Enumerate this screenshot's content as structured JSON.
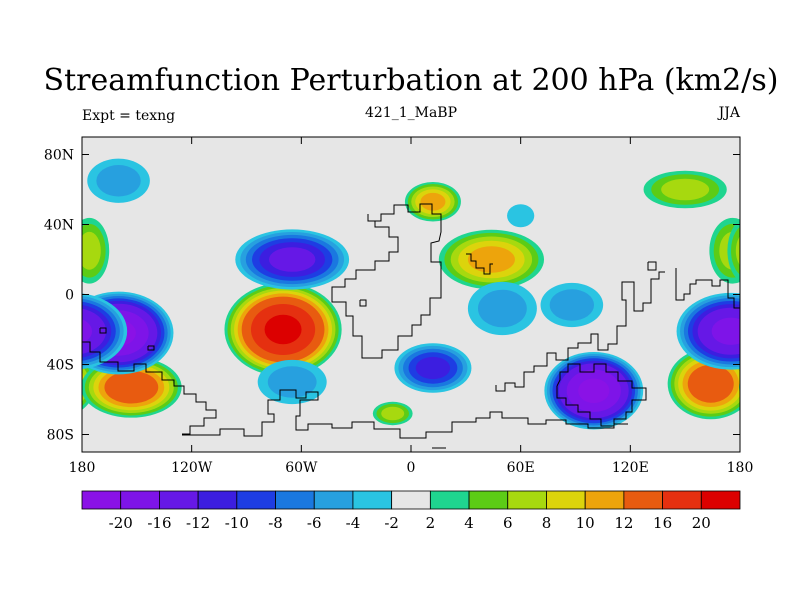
{
  "chart_data": {
    "type": "contour_map",
    "title": "Streamfunction Perturbation at 200 hPa (km2/s)",
    "left_label": "Expt = texng",
    "center_label": "421_1_MaBP",
    "right_label": "JJA",
    "xlim": [
      -180,
      180
    ],
    "ylim": [
      -90,
      90
    ],
    "x_ticks": [
      {
        "value": -180,
        "label": "180"
      },
      {
        "value": -120,
        "label": "120W"
      },
      {
        "value": -60,
        "label": "60W"
      },
      {
        "value": 0,
        "label": "0"
      },
      {
        "value": 60,
        "label": "60E"
      },
      {
        "value": 120,
        "label": "120E"
      },
      {
        "value": 180,
        "label": "180"
      }
    ],
    "y_ticks": [
      {
        "value": 80,
        "label": "80N"
      },
      {
        "value": 40,
        "label": "40N"
      },
      {
        "value": 0,
        "label": "0"
      },
      {
        "value": -40,
        "label": "40S"
      },
      {
        "value": -80,
        "label": "80S"
      }
    ],
    "colorbar": {
      "labels": [
        "-20",
        "-16",
        "-12",
        "-10",
        "-8",
        "-6",
        "-4",
        "-2",
        "2",
        "4",
        "6",
        "8",
        "10",
        "12",
        "16",
        "20"
      ],
      "colors": [
        "#8a12e6",
        "#7e14e8",
        "#6618e6",
        "#3c1ee0",
        "#1e3de3",
        "#1a78e0",
        "#27a0df",
        "#2ac4e2",
        "#e6e6e6",
        "#1fd58f",
        "#5ccc16",
        "#a7d90f",
        "#dcd40c",
        "#eda40c",
        "#e85b10",
        "#e53010",
        "#dc0000"
      ]
    },
    "features": [
      {
        "name": "positive-center",
        "lon": -70,
        "lat": -20,
        "value": 20,
        "rx": 32,
        "ry": 18
      },
      {
        "name": "positive-center",
        "lon": 164,
        "lat": -51,
        "value": 14,
        "rx": 24,
        "ry": 14
      },
      {
        "name": "positive-center",
        "lon": 12,
        "lat": 53,
        "value": 10,
        "rx": 16,
        "ry": 8
      },
      {
        "name": "positive-center",
        "lon": 44,
        "lat": 20,
        "value": 10,
        "rx": 30,
        "ry": 12
      },
      {
        "name": "positive-center",
        "lon": 176,
        "lat": 25,
        "value": 6,
        "rx": 14,
        "ry": 14
      },
      {
        "name": "positive-center",
        "lon": -176,
        "lat": 25,
        "value": 6,
        "rx": 12,
        "ry": 14
      },
      {
        "name": "positive-center",
        "lon": -153,
        "lat": -53,
        "value": 14,
        "rx": 28,
        "ry": 12
      },
      {
        "name": "positive-center",
        "lon": -10,
        "lat": -68,
        "value": 6,
        "rx": 12,
        "ry": 5
      },
      {
        "name": "positive-center",
        "lon": 150,
        "lat": 60,
        "value": 6,
        "rx": 25,
        "ry": 8
      },
      {
        "name": "negative-center",
        "lon": -160,
        "lat": -22,
        "value": -20,
        "rx": 30,
        "ry": 16
      },
      {
        "name": "negative-center",
        "lon": 100,
        "lat": -55,
        "value": -20,
        "rx": 27,
        "ry": 15
      },
      {
        "name": "negative-center",
        "lon": 175,
        "lat": -21,
        "value": -16,
        "rx": 30,
        "ry": 15
      },
      {
        "name": "negative-center",
        "lon": -65,
        "lat": 20,
        "value": -12,
        "rx": 32,
        "ry": 12
      },
      {
        "name": "negative-center",
        "lon": 12,
        "lat": -42,
        "value": -10,
        "rx": 22,
        "ry": 10
      },
      {
        "name": "negative-center",
        "lon": 50,
        "lat": -8,
        "value": -4,
        "rx": 22,
        "ry": 12
      },
      {
        "name": "negative-center",
        "lon": 88,
        "lat": -6,
        "value": -4,
        "rx": 20,
        "ry": 10
      },
      {
        "name": "negative-center",
        "lon": -160,
        "lat": 65,
        "value": -4,
        "rx": 20,
        "ry": 10
      },
      {
        "name": "negative-center",
        "lon": -65,
        "lat": -50,
        "value": -4,
        "rx": 22,
        "ry": 10
      },
      {
        "name": "negative-center",
        "lon": 60,
        "lat": 45,
        "value": -2,
        "rx": 10,
        "ry": 6
      }
    ]
  }
}
